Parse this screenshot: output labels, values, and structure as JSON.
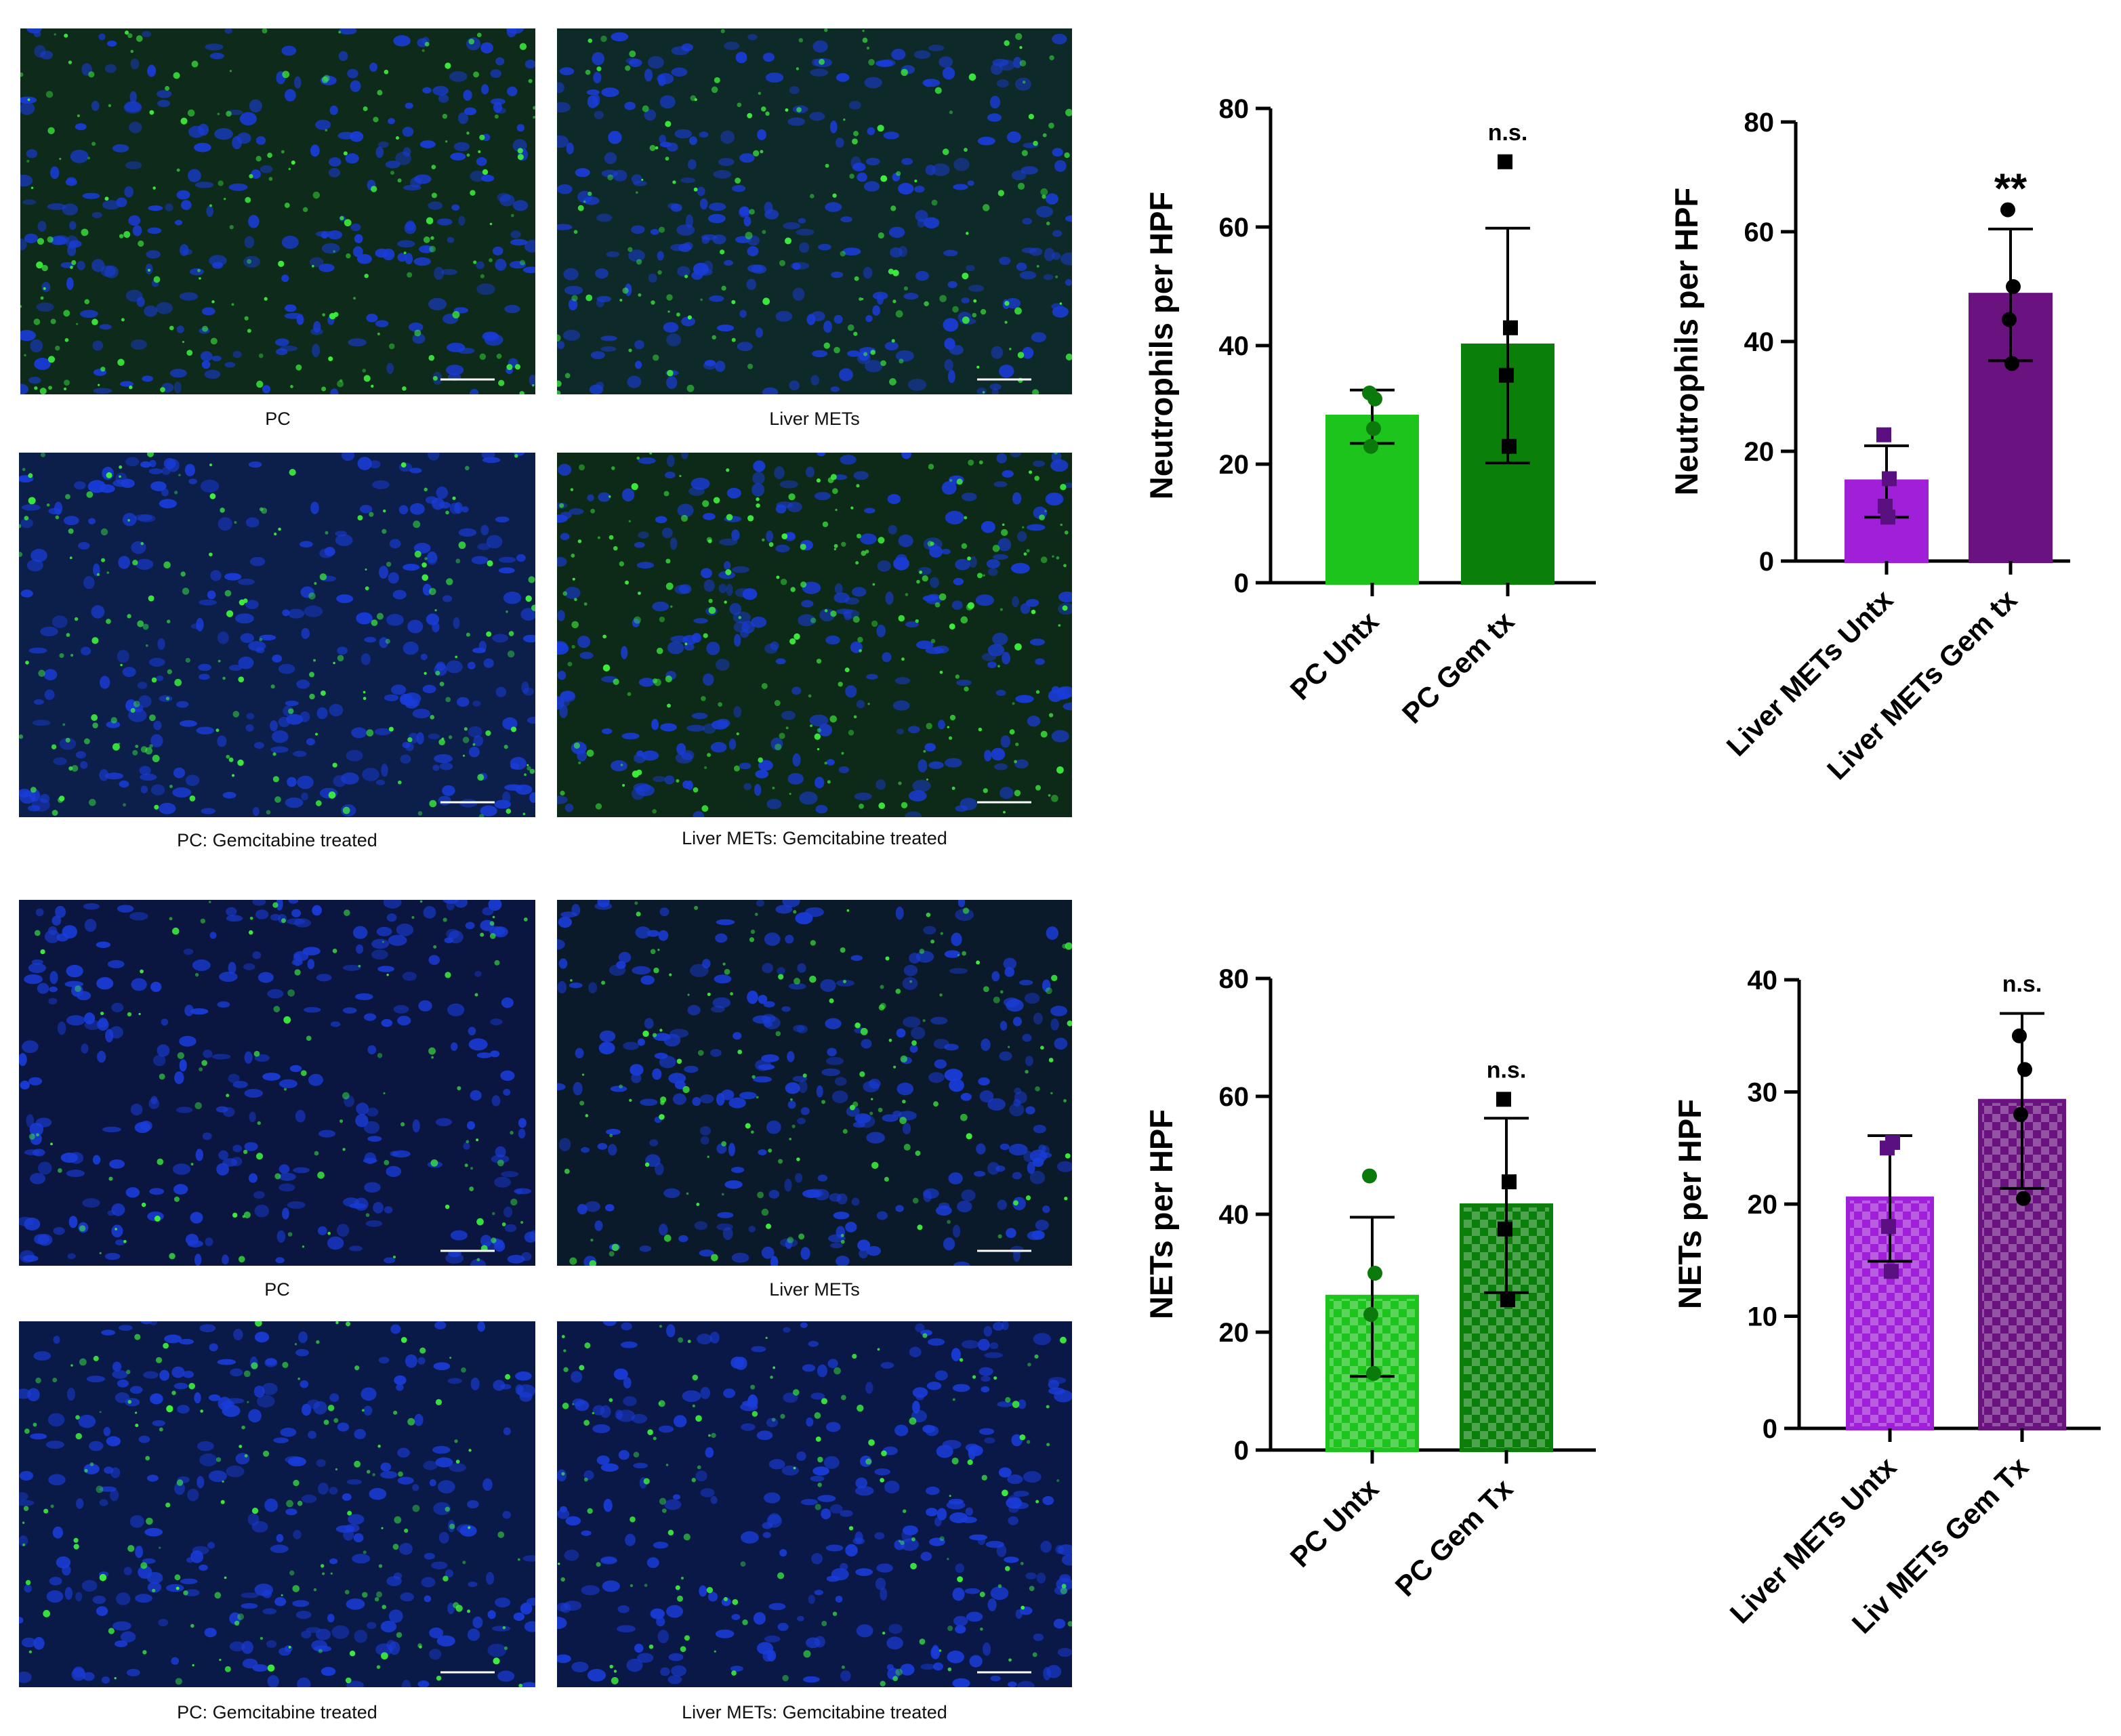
{
  "colors": {
    "green_light": "#1cc41c",
    "green_dark": "#0a800a",
    "purple_light": "#a01fd8",
    "purple_dark": "#6a1280",
    "nuclei_blue": "#1a3cd8",
    "stain_green": "#3cf03c"
  },
  "micrographs": [
    {
      "caption": "PC"
    },
    {
      "caption": "Liver METs"
    },
    {
      "caption": "PC: Gemcitabine treated"
    },
    {
      "caption": "Liver METs: Gemcitabine treated"
    },
    {
      "caption": "PC"
    },
    {
      "caption": "Liver METs"
    },
    {
      "caption": "PC: Gemcitabine treated"
    },
    {
      "caption": "Liver METs: Gemcitabine treated"
    }
  ],
  "chart_data": [
    {
      "type": "bar",
      "ylabel": "Neutrophils per HPF",
      "ylim": [
        0,
        80
      ],
      "yticks": [
        0,
        20,
        40,
        60,
        80
      ],
      "categories": [
        "PC Untx",
        "PC Gem tx"
      ],
      "values": [
        28,
        40
      ],
      "errors": [
        4.5,
        19.8
      ],
      "points": [
        [
          32,
          31,
          23,
          26
        ],
        [
          71,
          43,
          35,
          23
        ]
      ],
      "markers": [
        "circle",
        "square"
      ],
      "colors": [
        "green_light",
        "green_dark"
      ],
      "pattern": "solid",
      "significance": "n.s."
    },
    {
      "type": "bar",
      "ylabel": "Neutrophils per HPF",
      "ylim": [
        0,
        80
      ],
      "yticks": [
        0,
        20,
        40,
        60,
        80
      ],
      "categories": [
        "Liver METs Untx",
        "Liver METs Gem tx"
      ],
      "values": [
        14.5,
        48.5
      ],
      "errors": [
        6.5,
        12
      ],
      "points": [
        [
          23,
          15,
          10,
          8
        ],
        [
          64,
          50,
          44,
          36
        ]
      ],
      "markers": [
        "square",
        "circle"
      ],
      "colors": [
        "purple_light",
        "purple_dark"
      ],
      "pattern": "solid",
      "significance": "**"
    },
    {
      "type": "bar",
      "ylabel": "NETs per HPF",
      "ylim": [
        0,
        80
      ],
      "yticks": [
        0,
        20,
        40,
        60,
        80
      ],
      "categories": [
        "PC Untx",
        "PC Gem Tx"
      ],
      "values": [
        26,
        41.5
      ],
      "errors": [
        13.5,
        14.8
      ],
      "points": [
        [
          46.5,
          30,
          23,
          13
        ],
        [
          59.5,
          45.5,
          37.5,
          25.5
        ]
      ],
      "markers": [
        "circle",
        "square"
      ],
      "colors": [
        "green_light",
        "green_dark"
      ],
      "pattern": "checker",
      "significance": "n.s."
    },
    {
      "type": "bar",
      "ylabel": "NETs per HPF",
      "ylim": [
        0,
        40
      ],
      "yticks": [
        0,
        10,
        20,
        30,
        40
      ],
      "categories": [
        "Liver METs Untx",
        "Liv METs Gem Tx"
      ],
      "values": [
        20.5,
        29.2
      ],
      "errors": [
        5.6,
        7.8
      ],
      "points": [
        [
          25,
          25.5,
          18,
          14
        ],
        [
          35,
          32,
          28,
          20.5
        ]
      ],
      "markers": [
        "square",
        "circle"
      ],
      "colors": [
        "purple_light",
        "purple_dark"
      ],
      "pattern": "checker",
      "significance": "n.s."
    }
  ]
}
